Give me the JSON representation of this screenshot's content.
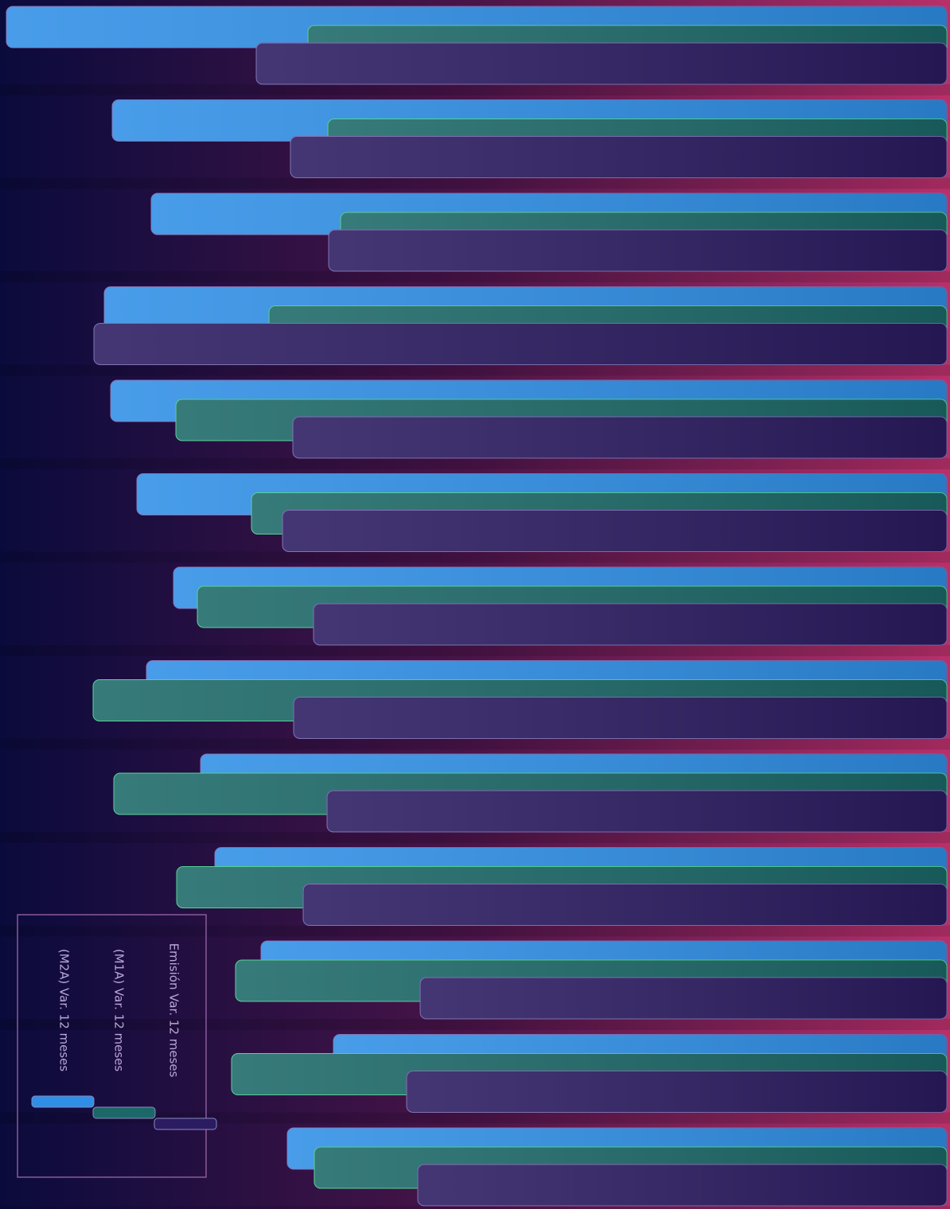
{
  "chart_data": {
    "type": "bar",
    "orientation": "horizontal",
    "categories": [
      null,
      null,
      null,
      null,
      null,
      null,
      null,
      null,
      null,
      null,
      null,
      null,
      null
    ],
    "series": [
      {
        "name": "(M2A) Var. 12 meses",
        "color": "#2f8fe6",
        "values": [
          1182,
          1049,
          1000,
          1059,
          1051,
          1018,
          972,
          1006,
          938,
          920,
          862,
          771,
          829
        ]
      },
      {
        "name": "(M1A) Var. 12 meses",
        "color": "#1c6868",
        "values": [
          803,
          778,
          762,
          852,
          969,
          874,
          942,
          1073,
          1047,
          968,
          894,
          899,
          795
        ]
      },
      {
        "name": "Emisión Var. 12 meses",
        "color": "#2b1b60",
        "values": [
          868,
          825,
          777,
          1072,
          822,
          835,
          796,
          821,
          779,
          809,
          662,
          679,
          665
        ]
      }
    ],
    "ylim": [
      0,
      1190
    ]
  }
}
